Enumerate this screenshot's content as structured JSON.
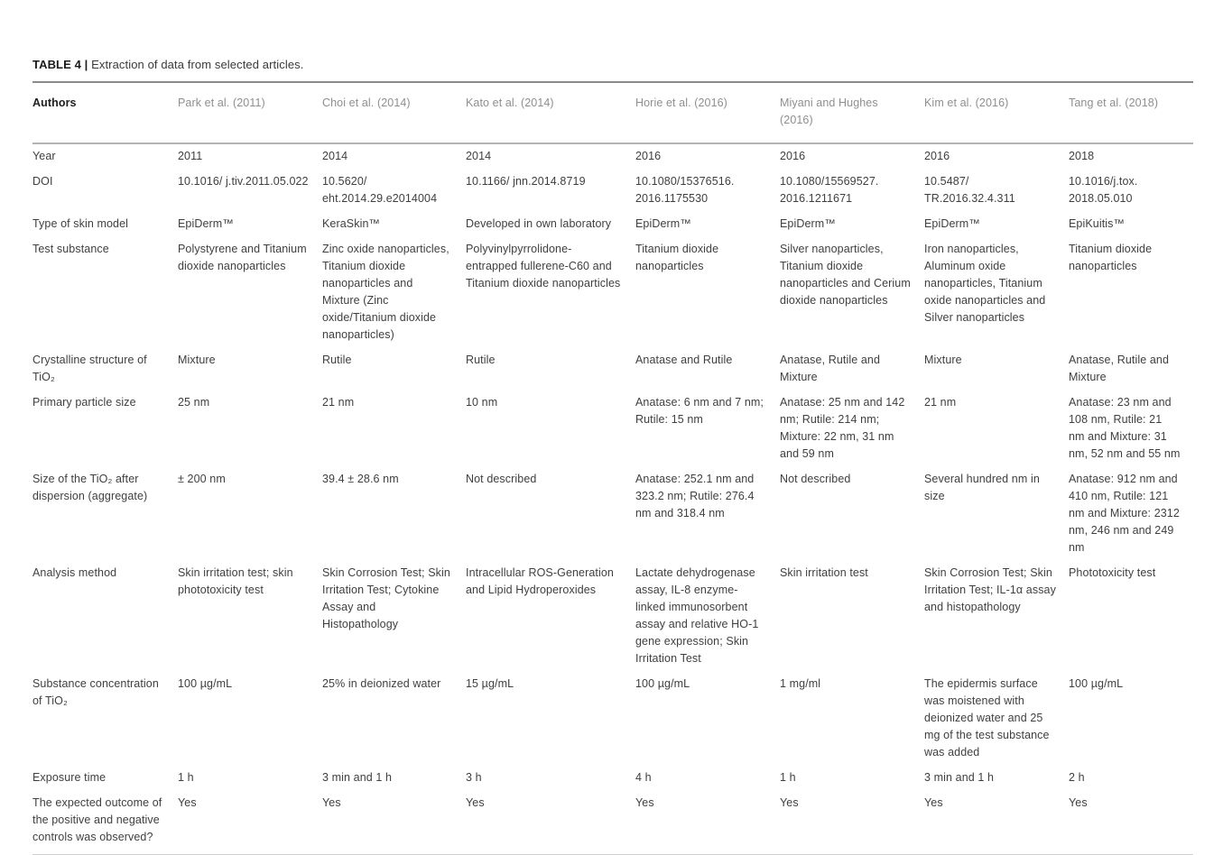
{
  "table": {
    "title_label": "TABLE 4 |",
    "title_caption": " Extraction of data from selected articles.",
    "header": {
      "label": "Authors",
      "columns": [
        "Park et al. (2011)",
        "Choi et al. (2014)",
        "Kato et al. (2014)",
        "Horie et al. (2016)",
        "Miyani and Hughes (2016)",
        "Kim et al. (2016)",
        "Tang et al. (2018)"
      ]
    },
    "rows": [
      {
        "label": "Year",
        "cells": [
          "2011",
          "2014",
          "2014",
          "2016",
          "2016",
          "2016",
          "2018"
        ]
      },
      {
        "label": "DOI",
        "cells": [
          "10.1016/ j.tiv.2011.05.022",
          "10.5620/ eht.2014.29.e2014004",
          "10.1166/ jnn.2014.8719",
          "10.1080/15376516. 2016.1175530",
          "10.1080/15569527. 2016.1211671",
          "10.5487/ TR.2016.32.4.311",
          "10.1016/j.tox. 2018.05.010"
        ]
      },
      {
        "label": "Type of skin model",
        "cells": [
          "EpiDerm™",
          "KeraSkin™",
          "Developed in own laboratory",
          "EpiDerm™",
          "EpiDerm™",
          "EpiDerm™",
          "EpiKuitis™"
        ]
      },
      {
        "label": "Test substance",
        "cells": [
          "Polystyrene and Titanium dioxide nanoparticles",
          "Zinc oxide nanoparticles, Titanium dioxide nanoparticles and Mixture (Zinc oxide/Titanium dioxide nanoparticles)",
          "Polyvinylpyrrolidone-entrapped fullerene-C60 and Titanium dioxide nanoparticles",
          "Titanium dioxide nanoparticles",
          "Silver nanoparticles, Titanium dioxide nanoparticles and Cerium dioxide nanoparticles",
          "Iron nanoparticles, Aluminum oxide nanoparticles, Titanium oxide nanoparticles and Silver nanoparticles",
          "Titanium dioxide nanoparticles"
        ]
      },
      {
        "label": "Crystalline structure of TiO₂",
        "cells": [
          "Mixture",
          "Rutile",
          "Rutile",
          "Anatase and Rutile",
          "Anatase, Rutile and Mixture",
          "Mixture",
          "Anatase, Rutile and Mixture"
        ]
      },
      {
        "label": "Primary particle size",
        "cells": [
          "25 nm",
          "21 nm",
          "10 nm",
          "Anatase: 6 nm and 7 nm; Rutile: 15 nm",
          "Anatase: 25 nm and 142 nm; Rutile: 214 nm; Mixture: 22 nm, 31 nm and 59 nm",
          "21 nm",
          "Anatase: 23 nm and 108 nm, Rutile: 21 nm and Mixture: 31 nm, 52 nm and 55 nm"
        ]
      },
      {
        "label": "Size of the TiO₂ after dispersion (aggregate)",
        "cells": [
          "± 200 nm",
          "39.4 ± 28.6 nm",
          "Not described",
          "Anatase: 252.1 nm and 323.2 nm; Rutile: 276.4 nm and 318.4 nm",
          "Not described",
          "Several hundred nm in size",
          "Anatase: 912 nm and 410 nm, Rutile: 121 nm and Mixture: 2312 nm, 246 nm and 249 nm"
        ]
      },
      {
        "label": "Analysis method",
        "cells": [
          "Skin irritation test; skin phototoxicity test",
          "Skin Corrosion Test; Skin Irritation Test; Cytokine Assay and Histopathology",
          "Intracellular ROS-Generation and Lipid Hydroperoxides",
          "Lactate dehydrogenase assay, IL-8 enzyme-linked immunosorbent assay and relative HO-1 gene expression; Skin Irritation Test",
          "Skin irritation test",
          "Skin Corrosion Test; Skin Irritation Test; IL-1α assay and histopathology",
          "Phototoxicity test"
        ]
      },
      {
        "label": "Substance concentration of TiO₂",
        "cells": [
          "100 µg/mL",
          "25% in deionized water",
          "15 µg/mL",
          "100 µg/mL",
          "1 mg/ml",
          "The epidermis surface was moistened with deionized water and 25 mg of the test substance was added",
          "100 µg/mL"
        ]
      },
      {
        "label": "Exposure time",
        "cells": [
          "1 h",
          "3 min and 1 h",
          "3 h",
          "4 h",
          "1 h",
          "3 min and 1 h",
          "2 h"
        ]
      },
      {
        "label": "The expected outcome of the positive and negative controls was observed?",
        "cells": [
          "Yes",
          "Yes",
          "Yes",
          "Yes",
          "Yes",
          "Yes",
          "Yes"
        ]
      }
    ]
  }
}
